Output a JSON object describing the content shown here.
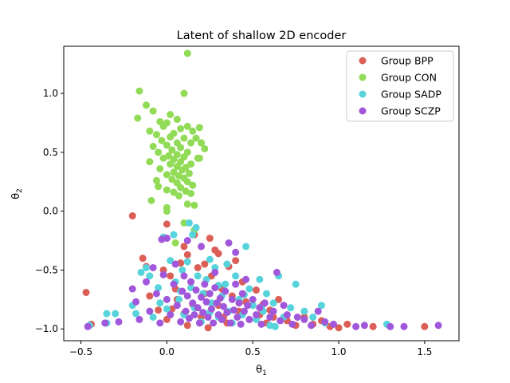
{
  "chart_data": {
    "type": "scatter",
    "title": "Latent of shallow 2D encoder",
    "xlabel_base": "θ",
    "xlabel_sub": "1",
    "ylabel_base": "θ",
    "ylabel_sub": "2",
    "xlim": [
      -0.6,
      1.7
    ],
    "ylim": [
      -1.1,
      1.4
    ],
    "xticks": [
      -0.5,
      0.0,
      0.5,
      1.0,
      1.5
    ],
    "xtick_labels": [
      "−0.5",
      "0.0",
      "0.5",
      "1.0",
      "1.5"
    ],
    "yticks": [
      -1.0,
      -0.5,
      0.0,
      0.5,
      1.0
    ],
    "ytick_labels": [
      "−1.0",
      "−0.5",
      "0.0",
      "0.5",
      "1.0"
    ],
    "grid": false,
    "legend_position": "top-right",
    "series": [
      {
        "name": "Group BPP",
        "color": "#db5f57",
        "points": [
          [
            -0.47,
            -0.69
          ],
          [
            -0.44,
            -0.96
          ],
          [
            -0.2,
            -0.04
          ],
          [
            -0.14,
            -0.4
          ],
          [
            -0.12,
            -0.47
          ],
          [
            -0.1,
            -0.72
          ],
          [
            -0.05,
            -0.84
          ],
          [
            -0.02,
            -0.5
          ],
          [
            0.0,
            -0.11
          ],
          [
            0.0,
            -0.92
          ],
          [
            0.02,
            -0.55
          ],
          [
            0.05,
            -0.66
          ],
          [
            0.06,
            -0.75
          ],
          [
            0.08,
            -0.44
          ],
          [
            0.1,
            -0.3
          ],
          [
            0.1,
            -0.87
          ],
          [
            0.12,
            -0.37
          ],
          [
            0.14,
            -0.6
          ],
          [
            0.15,
            -0.79
          ],
          [
            0.16,
            -0.2
          ],
          [
            0.18,
            -0.48
          ],
          [
            0.2,
            -0.9
          ],
          [
            0.22,
            -0.7
          ],
          [
            0.24,
            -0.99
          ],
          [
            0.25,
            -0.23
          ],
          [
            0.26,
            -0.55
          ],
          [
            0.28,
            -0.33
          ],
          [
            0.3,
            -0.8
          ],
          [
            0.32,
            -0.66
          ],
          [
            0.33,
            -0.9
          ],
          [
            0.36,
            -0.47
          ],
          [
            0.38,
            -0.72
          ],
          [
            0.4,
            -0.42
          ],
          [
            0.42,
            -0.85
          ],
          [
            0.44,
            -0.6
          ],
          [
            0.46,
            -0.77
          ],
          [
            0.48,
            -0.92
          ],
          [
            0.5,
            -0.8
          ],
          [
            0.52,
            -0.67
          ],
          [
            0.54,
            -0.88
          ],
          [
            0.56,
            -0.79
          ],
          [
            0.58,
            -0.95
          ],
          [
            0.6,
            -0.84
          ],
          [
            0.62,
            -0.9
          ],
          [
            0.65,
            -0.75
          ],
          [
            0.7,
            -0.93
          ],
          [
            0.75,
            -0.97
          ],
          [
            0.8,
            -0.9
          ],
          [
            0.85,
            -0.96
          ],
          [
            0.9,
            -0.93
          ],
          [
            0.95,
            -0.98
          ],
          [
            1.0,
            -0.99
          ],
          [
            1.05,
            -0.96
          ],
          [
            1.2,
            -0.98
          ],
          [
            1.5,
            -0.98
          ],
          [
            0.3,
            -0.36
          ],
          [
            0.22,
            -0.45
          ],
          [
            0.35,
            -0.95
          ],
          [
            0.12,
            -0.97
          ],
          [
            0.03,
            -0.83
          ]
        ]
      },
      {
        "name": "Group CON",
        "color": "#91db57",
        "points": [
          [
            0.12,
            1.34
          ],
          [
            -0.16,
            1.02
          ],
          [
            0.1,
            1.0
          ],
          [
            -0.12,
            0.9
          ],
          [
            -0.08,
            0.85
          ],
          [
            0.02,
            0.82
          ],
          [
            -0.17,
            0.79
          ],
          [
            0.06,
            0.78
          ],
          [
            -0.04,
            0.76
          ],
          [
            0.0,
            0.75
          ],
          [
            0.12,
            0.72
          ],
          [
            -0.02,
            0.72
          ],
          [
            0.08,
            0.7
          ],
          [
            -0.1,
            0.68
          ],
          [
            0.15,
            0.68
          ],
          [
            0.04,
            0.66
          ],
          [
            -0.06,
            0.65
          ],
          [
            0.02,
            0.63
          ],
          [
            0.1,
            0.62
          ],
          [
            -0.03,
            0.6
          ],
          [
            0.06,
            0.58
          ],
          [
            0.14,
            0.58
          ],
          [
            0.0,
            0.56
          ],
          [
            -0.08,
            0.55
          ],
          [
            0.08,
            0.54
          ],
          [
            0.03,
            0.52
          ],
          [
            0.12,
            0.5
          ],
          [
            -0.05,
            0.5
          ],
          [
            0.06,
            0.48
          ],
          [
            0.01,
            0.47
          ],
          [
            0.1,
            0.46
          ],
          [
            -0.02,
            0.45
          ],
          [
            0.18,
            0.45
          ],
          [
            0.04,
            0.44
          ],
          [
            0.08,
            0.42
          ],
          [
            -0.1,
            0.42
          ],
          [
            0.14,
            0.4
          ],
          [
            0.02,
            0.4
          ],
          [
            0.06,
            0.38
          ],
          [
            0.11,
            0.37
          ],
          [
            -0.04,
            0.36
          ],
          [
            0.09,
            0.35
          ],
          [
            0.04,
            0.33
          ],
          [
            0.13,
            0.32
          ],
          [
            0.0,
            0.31
          ],
          [
            0.07,
            0.3
          ],
          [
            0.1,
            0.28
          ],
          [
            0.03,
            0.27
          ],
          [
            -0.06,
            0.26
          ],
          [
            0.12,
            0.25
          ],
          [
            0.06,
            0.24
          ],
          [
            0.15,
            0.22
          ],
          [
            -0.05,
            0.21
          ],
          [
            0.08,
            0.2
          ],
          [
            0.0,
            0.18
          ],
          [
            0.11,
            0.17
          ],
          [
            0.04,
            0.16
          ],
          [
            0.14,
            0.15
          ],
          [
            0.07,
            0.13
          ],
          [
            -0.09,
            0.09
          ],
          [
            0.12,
            0.06
          ],
          [
            0.0,
            0.03
          ],
          [
            0.16,
            0.05
          ],
          [
            0.0,
            0.0
          ],
          [
            0.1,
            -0.1
          ],
          [
            0.05,
            -0.27
          ],
          [
            0.16,
            -0.16
          ],
          [
            0.19,
            0.71
          ],
          [
            0.2,
            0.58
          ],
          [
            0.19,
            0.45
          ],
          [
            0.17,
            0.62
          ],
          [
            0.22,
            0.53
          ]
        ]
      },
      {
        "name": "Group SADP",
        "color": "#57d3db",
        "points": [
          [
            -0.45,
            -0.97
          ],
          [
            -0.35,
            -0.95
          ],
          [
            -0.35,
            -0.87
          ],
          [
            -0.3,
            -0.87
          ],
          [
            -0.2,
            -0.8
          ],
          [
            -0.18,
            -0.87
          ],
          [
            -0.15,
            -0.52
          ],
          [
            -0.12,
            -0.48
          ],
          [
            -0.1,
            -0.55
          ],
          [
            -0.08,
            -0.9
          ],
          [
            -0.05,
            -0.65
          ],
          [
            -0.04,
            -0.78
          ],
          [
            -0.02,
            -0.22
          ],
          [
            0.0,
            -0.83
          ],
          [
            0.02,
            -0.42
          ],
          [
            0.04,
            -0.2
          ],
          [
            0.05,
            -0.6
          ],
          [
            0.07,
            -0.75
          ],
          [
            0.09,
            -0.5
          ],
          [
            0.1,
            -0.88
          ],
          [
            0.12,
            -0.43
          ],
          [
            0.13,
            -0.1
          ],
          [
            0.14,
            -0.65
          ],
          [
            0.15,
            -0.2
          ],
          [
            0.16,
            -0.82
          ],
          [
            0.18,
            -0.55
          ],
          [
            0.2,
            -0.94
          ],
          [
            0.21,
            -0.7
          ],
          [
            0.23,
            -0.58
          ],
          [
            0.25,
            -0.86
          ],
          [
            0.26,
            -0.78
          ],
          [
            0.28,
            -0.48
          ],
          [
            0.3,
            -0.9
          ],
          [
            0.32,
            -0.72
          ],
          [
            0.34,
            -0.62
          ],
          [
            0.36,
            -0.85
          ],
          [
            0.38,
            -0.95
          ],
          [
            0.4,
            -0.55
          ],
          [
            0.42,
            -0.75
          ],
          [
            0.44,
            -0.88
          ],
          [
            0.46,
            -0.3
          ],
          [
            0.48,
            -0.66
          ],
          [
            0.5,
            -0.8
          ],
          [
            0.52,
            -0.92
          ],
          [
            0.54,
            -0.58
          ],
          [
            0.56,
            -0.85
          ],
          [
            0.58,
            -0.7
          ],
          [
            0.6,
            -0.97
          ],
          [
            0.62,
            -0.78
          ],
          [
            0.65,
            -0.55
          ],
          [
            0.68,
            -0.9
          ],
          [
            0.72,
            -0.82
          ],
          [
            0.75,
            -0.62
          ],
          [
            0.8,
            -0.85
          ],
          [
            0.85,
            -0.9
          ],
          [
            0.9,
            -0.8
          ],
          [
            0.92,
            -0.95
          ],
          [
            1.28,
            -0.96
          ],
          [
            0.17,
            -0.14
          ],
          [
            0.25,
            -0.41
          ],
          [
            0.35,
            -0.45
          ],
          [
            0.45,
            -0.71
          ],
          [
            0.55,
            -0.82
          ],
          [
            0.63,
            -0.98
          ],
          [
            0.08,
            -0.68
          ],
          [
            0.3,
            -0.63
          ]
        ]
      },
      {
        "name": "Group SCZP",
        "color": "#a157db",
        "points": [
          [
            -0.46,
            -0.98
          ],
          [
            -0.36,
            -0.95
          ],
          [
            -0.28,
            -0.94
          ],
          [
            -0.2,
            -0.66
          ],
          [
            -0.18,
            -0.77
          ],
          [
            -0.16,
            -0.92
          ],
          [
            -0.12,
            -0.6
          ],
          [
            -0.1,
            -0.85
          ],
          [
            -0.08,
            -0.48
          ],
          [
            -0.06,
            -0.7
          ],
          [
            -0.04,
            -0.95
          ],
          [
            -0.02,
            -0.54
          ],
          [
            0.0,
            -0.23
          ],
          [
            0.0,
            -0.75
          ],
          [
            0.02,
            -0.88
          ],
          [
            0.04,
            -0.62
          ],
          [
            0.05,
            -0.45
          ],
          [
            0.06,
            -0.8
          ],
          [
            0.08,
            -0.94
          ],
          [
            0.09,
            -0.68
          ],
          [
            0.1,
            -0.55
          ],
          [
            0.11,
            -0.85
          ],
          [
            0.12,
            -0.72
          ],
          [
            0.13,
            -0.91
          ],
          [
            0.14,
            -0.6
          ],
          [
            0.15,
            -0.78
          ],
          [
            0.16,
            -0.88
          ],
          [
            0.17,
            -0.67
          ],
          [
            0.18,
            -0.82
          ],
          [
            0.19,
            -0.95
          ],
          [
            0.2,
            -0.73
          ],
          [
            0.21,
            -0.86
          ],
          [
            0.22,
            -0.62
          ],
          [
            0.23,
            -0.77
          ],
          [
            0.24,
            -0.9
          ],
          [
            0.25,
            -0.7
          ],
          [
            0.26,
            -0.83
          ],
          [
            0.27,
            -0.95
          ],
          [
            0.28,
            -0.65
          ],
          [
            0.29,
            -0.78
          ],
          [
            0.3,
            -0.88
          ],
          [
            0.31,
            -0.74
          ],
          [
            0.32,
            -0.92
          ],
          [
            0.33,
            -0.81
          ],
          [
            0.34,
            -0.68
          ],
          [
            0.35,
            -0.86
          ],
          [
            0.36,
            -0.27
          ],
          [
            0.37,
            -0.95
          ],
          [
            0.38,
            -0.75
          ],
          [
            0.39,
            -0.84
          ],
          [
            0.4,
            -0.62
          ],
          [
            0.41,
            -0.9
          ],
          [
            0.42,
            -0.78
          ],
          [
            0.43,
            -0.96
          ],
          [
            0.44,
            -0.7
          ],
          [
            0.45,
            -0.85
          ],
          [
            0.46,
            -0.58
          ],
          [
            0.47,
            -0.8
          ],
          [
            0.48,
            -0.92
          ],
          [
            0.5,
            -0.75
          ],
          [
            0.52,
            -0.88
          ],
          [
            0.54,
            -0.82
          ],
          [
            0.55,
            -0.96
          ],
          [
            0.57,
            -0.78
          ],
          [
            0.6,
            -0.9
          ],
          [
            0.62,
            -0.85
          ],
          [
            0.64,
            -0.52
          ],
          [
            0.66,
            -0.93
          ],
          [
            0.68,
            -0.8
          ],
          [
            0.7,
            -0.88
          ],
          [
            0.73,
            -0.96
          ],
          [
            0.76,
            -0.9
          ],
          [
            0.8,
            -0.92
          ],
          [
            0.84,
            -0.97
          ],
          [
            0.88,
            -0.85
          ],
          [
            0.92,
            -0.94
          ],
          [
            0.97,
            -0.96
          ],
          [
            1.1,
            -0.98
          ],
          [
            1.15,
            -0.97
          ],
          [
            1.3,
            -0.98
          ],
          [
            1.38,
            -0.98
          ],
          [
            1.58,
            -0.97
          ],
          [
            0.2,
            -0.3
          ],
          [
            0.12,
            -0.25
          ],
          [
            -0.03,
            -0.24
          ],
          [
            0.28,
            -0.52
          ],
          [
            0.4,
            -0.35
          ]
        ]
      }
    ]
  }
}
